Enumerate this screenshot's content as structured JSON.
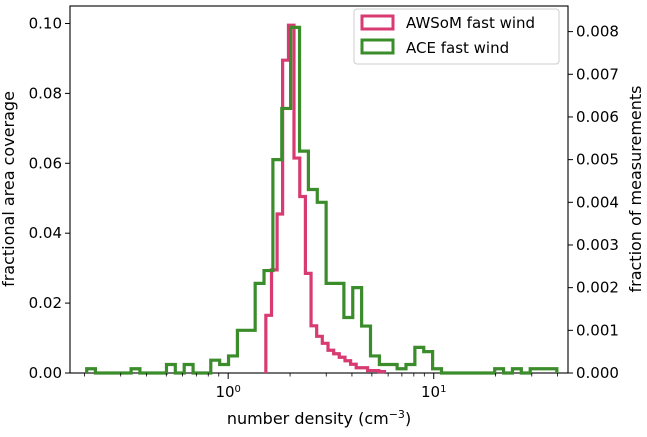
{
  "chart_data": {
    "type": "histogram",
    "title": "",
    "x_axis": {
      "label_main": "number density (cm",
      "label_sup": "−3",
      "label_close": ")",
      "scale": "log",
      "lim": [
        0.17,
        45
      ],
      "ticks": [
        {
          "value": 1,
          "base": "10",
          "exp": "0"
        },
        {
          "value": 10,
          "base": "10",
          "exp": "1"
        }
      ]
    },
    "y_left": {
      "label": "fractional area coverage",
      "lim": [
        0,
        0.105
      ],
      "ticks": [
        0,
        0.02,
        0.04,
        0.06,
        0.08,
        0.1
      ],
      "tick_labels": [
        "0.00",
        "0.02",
        "0.04",
        "0.06",
        "0.08",
        "0.10"
      ]
    },
    "y_right": {
      "label": "fraction of measurements",
      "lim": [
        0,
        0.0086
      ],
      "ticks": [
        0,
        0.001,
        0.002,
        0.003,
        0.004,
        0.005,
        0.006,
        0.007,
        0.008
      ],
      "tick_labels": [
        "0.000",
        "0.001",
        "0.002",
        "0.003",
        "0.004",
        "0.005",
        "0.006",
        "0.007",
        "0.008"
      ]
    },
    "legend": {
      "position": "upper-right"
    },
    "series": [
      {
        "name": "AWSoM fast wind",
        "axis": "left",
        "color": "#d83a72",
        "edges": [
          1.525,
          1.625,
          1.73,
          1.84,
          1.965,
          2.09,
          2.23,
          2.375,
          2.53,
          2.695,
          2.87,
          3.06,
          3.26,
          3.47,
          3.7,
          3.94,
          4.195,
          4.47,
          4.765,
          5.075,
          5.405,
          5.76
        ],
        "values": [
          0.0165,
          0.0295,
          0.0455,
          0.0895,
          0.0995,
          0.0615,
          0.0505,
          0.0285,
          0.0135,
          0.0105,
          0.0085,
          0.0065,
          0.0055,
          0.0045,
          0.0035,
          0.0025,
          0.0015,
          0.0015,
          0.0007,
          0.0007,
          0.0004
        ]
      },
      {
        "name": "ACE fast wind",
        "axis": "right",
        "color": "#3b8c2b",
        "edges": [
          0.205,
          0.226,
          0.25,
          0.276,
          0.305,
          0.337,
          0.372,
          0.411,
          0.454,
          0.501,
          0.553,
          0.611,
          0.675,
          0.745,
          0.823,
          0.909,
          1.004,
          1.109,
          1.225,
          1.353,
          1.494,
          1.65,
          1.823,
          2.013,
          2.224,
          2.456,
          2.713,
          2.996,
          3.309,
          3.655,
          4.037,
          4.459,
          4.925,
          5.44,
          6.008,
          6.636,
          7.33,
          8.095,
          8.941,
          9.876,
          10.91,
          12.05,
          13.31,
          14.7,
          16.23,
          17.93,
          19.8,
          21.87,
          24.16,
          26.68,
          29.47,
          32.55,
          35.95,
          39.71
        ],
        "values": [
          0.0001,
          0.0,
          0.0,
          0.0,
          0.0,
          0.0001,
          0.0,
          0.0,
          0.0,
          0.0002,
          0.0,
          0.0002,
          0.0,
          0.0,
          0.0003,
          0.0002,
          0.0004,
          0.001,
          0.001,
          0.0021,
          0.0024,
          0.005,
          0.0062,
          0.0081,
          0.0052,
          0.0043,
          0.004,
          0.0021,
          0.0021,
          0.0013,
          0.002,
          0.0011,
          0.0004,
          0.0002,
          0.0002,
          0.0001,
          0.0002,
          0.0006,
          0.0005,
          0.0001,
          0.0,
          0.0,
          0.0,
          0.0,
          0.0,
          0.0,
          0.0001,
          0.0,
          0.0001,
          0.0,
          0.0001,
          0.0001,
          0.0001
        ]
      }
    ]
  }
}
